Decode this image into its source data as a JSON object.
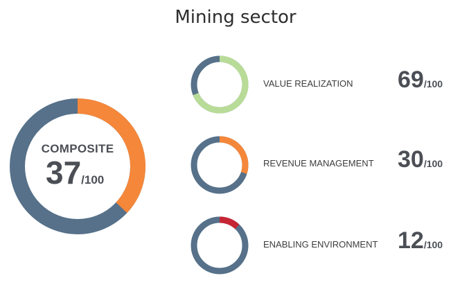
{
  "title": "Mining sector",
  "colors": {
    "base": "#567189",
    "composite": "#f5873a",
    "value_realization": "#b8dc98",
    "revenue_management": "#f5873a",
    "enabling_environment": "#c62534"
  },
  "chart_data": {
    "type": "donut",
    "title": "Mining sector",
    "max": 100,
    "composite": {
      "label": "COMPOSITE",
      "value": "37",
      "denominator": "/100"
    },
    "components": [
      {
        "label": "VALUE REALIZATION",
        "value": "69",
        "denominator": "/100"
      },
      {
        "label": "REVENUE MANAGEMENT",
        "value": "30",
        "denominator": "/100"
      },
      {
        "label": "ENABLING ENVIRONMENT",
        "value": "12",
        "denominator": "/100"
      }
    ]
  }
}
